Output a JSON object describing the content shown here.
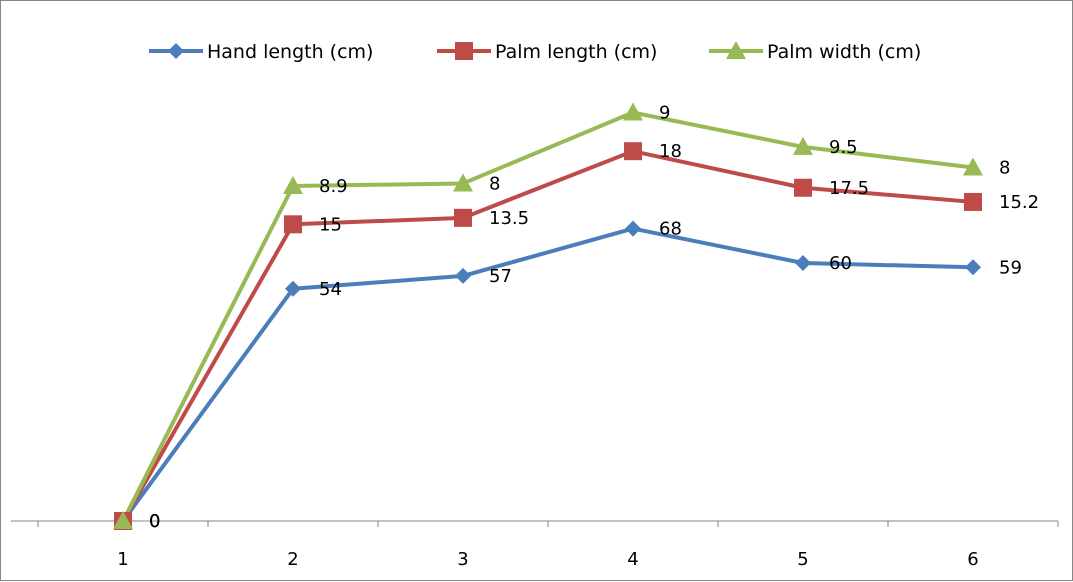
{
  "chart_data": {
    "type": "line",
    "title": "",
    "xlabel": "",
    "ylabel": "",
    "categories": [
      "1",
      "2",
      "3",
      "4",
      "5",
      "6"
    ],
    "stacked": true,
    "legend_position": "top",
    "grid": false,
    "series": [
      {
        "name": "Hand length (cm)",
        "values": [
          0,
          54,
          57,
          68,
          60,
          59
        ],
        "labels": [
          "0",
          "54",
          "57",
          "68",
          "60",
          "59"
        ],
        "color": "#4a7ebb",
        "marker": "diamond"
      },
      {
        "name": "Palm length (cm)",
        "values": [
          0,
          15,
          13.5,
          18,
          17.5,
          15.2
        ],
        "labels": [
          "0",
          "15",
          "13.5",
          "18",
          "17.5",
          "15.2"
        ],
        "color": "#be4b48",
        "marker": "square"
      },
      {
        "name": "Palm width (cm)",
        "values": [
          0,
          8.9,
          8,
          9,
          9.5,
          8
        ],
        "labels": [
          "0",
          "8.9",
          "8",
          "9",
          "9.5",
          "8"
        ],
        "color": "#98b954",
        "marker": "triangle"
      }
    ]
  }
}
